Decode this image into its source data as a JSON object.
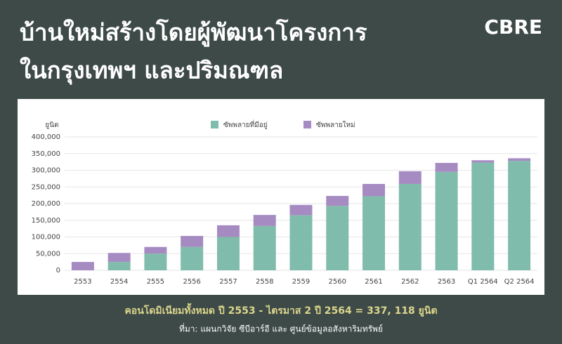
{
  "header": {
    "title_lines": [
      "บ้านใหม่สร้างโดยผู้พัฒนาโครงการ",
      "ในกรุงเทพฯ และปริมณฑล"
    ],
    "logo": "CBRE"
  },
  "chart_data": {
    "type": "stacked_bar",
    "y_unit_label": "ยูนิต",
    "categories": [
      "2553",
      "2554",
      "2555",
      "2556",
      "2557",
      "2558",
      "2559",
      "2560",
      "2561",
      "2562",
      "2563",
      "Q1 2564",
      "Q2 2564"
    ],
    "series": [
      {
        "name": "ซัพพลายที่มีอยู่",
        "color": "#7fbcab",
        "values": [
          0,
          25000,
          50000,
          70000,
          100000,
          133000,
          165000,
          193000,
          222000,
          259000,
          295000,
          323000,
          328000
        ]
      },
      {
        "name": "ซัพพลายใหม่",
        "color": "#a68bc2",
        "values": [
          25000,
          27000,
          20000,
          33000,
          35000,
          33000,
          31000,
          30000,
          37000,
          38000,
          27000,
          7000,
          8000
        ]
      }
    ],
    "ylim": [
      0,
      400000
    ],
    "yticks": [
      0,
      {
        "value": 50000,
        "label": "50,000"
      },
      {
        "value": 100000,
        "label": "100,000"
      },
      {
        "value": 150000,
        "label": "150,000"
      },
      {
        "value": 200000,
        "label": "200,000"
      },
      {
        "value": 250000,
        "label": "250,000"
      },
      {
        "value": 300000,
        "label": "300,000"
      },
      {
        "value": 350000,
        "label": "350,000"
      },
      {
        "value": 400000,
        "label": "400,000"
      }
    ],
    "grid": true,
    "legend": "top"
  },
  "footer": {
    "summary": "คอนโดมิเนียมทั้งหมด ปี 2553 - ไตรมาส 2 ปี 2564 = 337, 118 ยูนิต",
    "source": "ที่มา: แผนกวิจัย ซีบีอาร์อี และ ศูนย์ข้อมูลอสังหาริมทรัพย์"
  }
}
